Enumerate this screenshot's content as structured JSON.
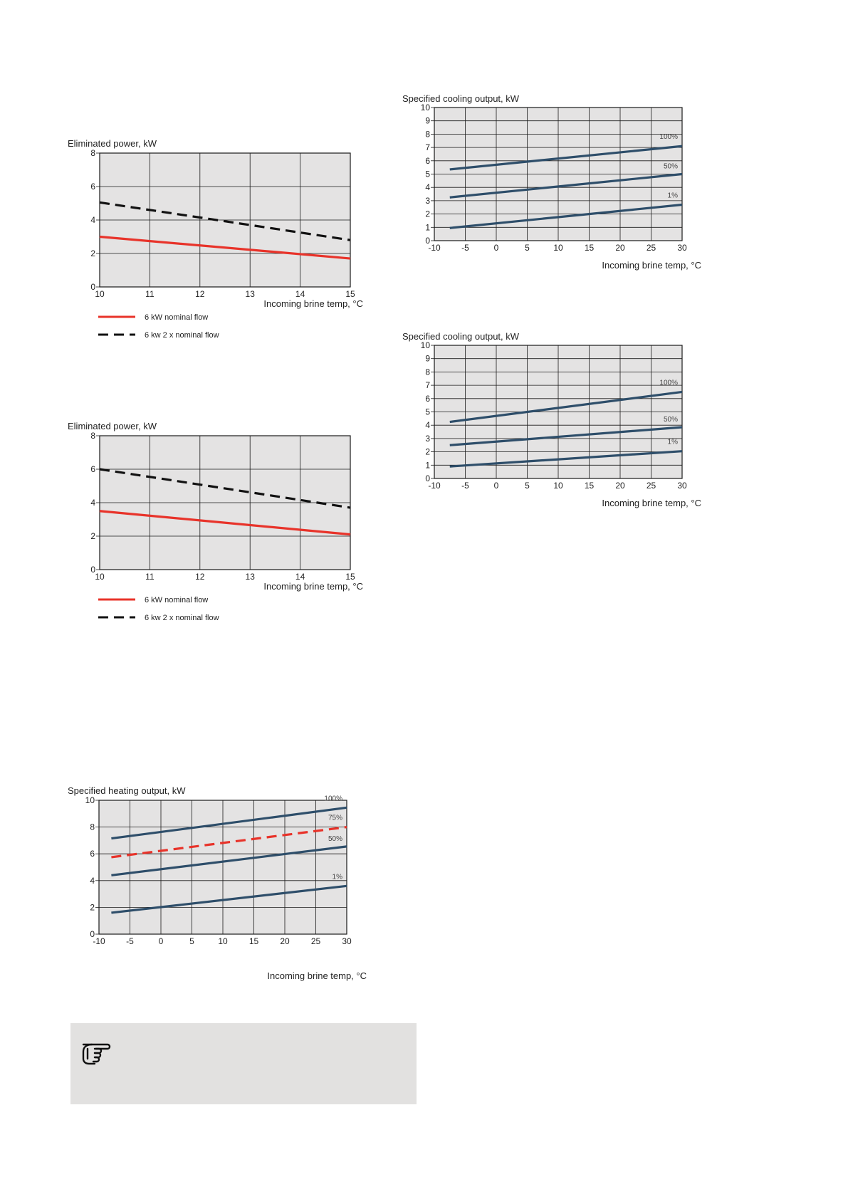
{
  "colors": {
    "plot_bg": "#e4e3e3",
    "grid": "#1a1a1a",
    "red": "#e8332a",
    "black": "#111111",
    "blue": "#2e4e6a",
    "note_bg": "#e2e1e0"
  },
  "chart_data": [
    {
      "id": "eliminated-1",
      "type": "line",
      "title": "Eliminated power, kW",
      "xlabel": "Incoming brine temp, °C",
      "ylabel": "Eliminated power, kW",
      "xlim": [
        10,
        15
      ],
      "ylim": [
        0,
        8
      ],
      "x_ticks": [
        "10",
        "11",
        "12",
        "13",
        "14",
        "15"
      ],
      "y_ticks": [
        "0",
        "2",
        "4",
        "6",
        "8"
      ],
      "series": [
        {
          "name": "6 kW nominal flow",
          "style": "solid",
          "color": "#e8332a",
          "x": [
            10,
            15
          ],
          "values": [
            3.0,
            1.7
          ]
        },
        {
          "name": "6 kw 2 x nominal flow",
          "style": "dashed",
          "color": "#111111",
          "x": [
            10,
            15
          ],
          "values": [
            5.05,
            2.8
          ]
        }
      ],
      "legend": [
        "6 kW nominal flow",
        "6 kw 2 x nominal flow"
      ]
    },
    {
      "id": "eliminated-2",
      "type": "line",
      "title": "Eliminated power, kW",
      "xlabel": "Incoming brine temp, °C",
      "ylabel": "Eliminated power, kW",
      "xlim": [
        10,
        15
      ],
      "ylim": [
        0,
        8
      ],
      "x_ticks": [
        "10",
        "11",
        "12",
        "13",
        "14",
        "15"
      ],
      "y_ticks": [
        "0",
        "2",
        "4",
        "6",
        "8"
      ],
      "series": [
        {
          "name": "6 kW nominal flow",
          "style": "solid",
          "color": "#e8332a",
          "x": [
            10,
            15
          ],
          "values": [
            3.5,
            2.1
          ]
        },
        {
          "name": "6 kw 2 x nominal flow",
          "style": "dashed",
          "color": "#111111",
          "x": [
            10,
            15
          ],
          "values": [
            6.0,
            3.7
          ]
        }
      ],
      "legend": [
        "6 kW nominal flow",
        "6 kw 2 x nominal flow"
      ]
    },
    {
      "id": "heating",
      "type": "line",
      "title": "Specified heating output, kW",
      "xlabel": "Incoming brine temp, °C",
      "ylabel": "Specified heating output, kW",
      "xlim": [
        -10,
        30
      ],
      "ylim": [
        0,
        10
      ],
      "x_ticks": [
        "-10",
        "-5",
        "0",
        "5",
        "10",
        "15",
        "20",
        "25",
        "30"
      ],
      "y_ticks": [
        "0",
        "2",
        "4",
        "6",
        "8",
        "10"
      ],
      "series": [
        {
          "name": "100%",
          "style": "solid",
          "color": "#2e4e6a",
          "x": [
            -8,
            30
          ],
          "values": [
            7.15,
            9.45
          ]
        },
        {
          "name": "75%",
          "style": "dashed",
          "color": "#e8332a",
          "x": [
            -8,
            30
          ],
          "values": [
            5.75,
            8.0
          ]
        },
        {
          "name": "50%",
          "style": "solid",
          "color": "#2e4e6a",
          "x": [
            -8,
            30
          ],
          "values": [
            4.4,
            6.55
          ]
        },
        {
          "name": "1%",
          "style": "solid",
          "color": "#2e4e6a",
          "x": [
            -8,
            30
          ],
          "values": [
            1.6,
            3.6
          ]
        }
      ]
    },
    {
      "id": "cooling-1",
      "type": "line",
      "title": "Specified cooling output, kW",
      "xlabel": "Incoming brine temp, °C",
      "ylabel": "Specified cooling output, kW",
      "xlim": [
        -10,
        30
      ],
      "ylim": [
        0,
        10
      ],
      "x_ticks": [
        "-10",
        "-5",
        "0",
        "5",
        "10",
        "15",
        "20",
        "25",
        "30"
      ],
      "y_ticks": [
        "0",
        "1",
        "2",
        "3",
        "4",
        "5",
        "6",
        "7",
        "8",
        "9",
        "10"
      ],
      "series": [
        {
          "name": "100%",
          "style": "solid",
          "color": "#2e4e6a",
          "x": [
            -7.5,
            30
          ],
          "values": [
            5.35,
            7.1
          ]
        },
        {
          "name": "50%",
          "style": "solid",
          "color": "#2e4e6a",
          "x": [
            -7.5,
            30
          ],
          "values": [
            3.25,
            5.0
          ]
        },
        {
          "name": "1%",
          "style": "solid",
          "color": "#2e4e6a",
          "x": [
            -7.5,
            30
          ],
          "values": [
            0.95,
            2.7
          ]
        }
      ]
    },
    {
      "id": "cooling-2",
      "type": "line",
      "title": "Specified cooling output, kW",
      "xlabel": "Incoming brine temp, °C",
      "ylabel": "Specified cooling output, kW",
      "xlim": [
        -10,
        30
      ],
      "ylim": [
        0,
        10
      ],
      "x_ticks": [
        "-10",
        "-5",
        "0",
        "5",
        "10",
        "15",
        "20",
        "25",
        "30"
      ],
      "y_ticks": [
        "0",
        "1",
        "2",
        "3",
        "4",
        "5",
        "6",
        "7",
        "8",
        "9",
        "10"
      ],
      "series": [
        {
          "name": "100%",
          "style": "solid",
          "color": "#2e4e6a",
          "x": [
            -7.5,
            30
          ],
          "values": [
            4.25,
            6.5
          ]
        },
        {
          "name": "50%",
          "style": "solid",
          "color": "#2e4e6a",
          "x": [
            -7.5,
            30
          ],
          "values": [
            2.5,
            3.85
          ]
        },
        {
          "name": "1%",
          "style": "solid",
          "color": "#2e4e6a",
          "x": [
            -7.5,
            30
          ],
          "values": [
            0.9,
            2.05
          ]
        }
      ]
    }
  ],
  "note": {
    "icon": "pointing-hand-icon"
  }
}
